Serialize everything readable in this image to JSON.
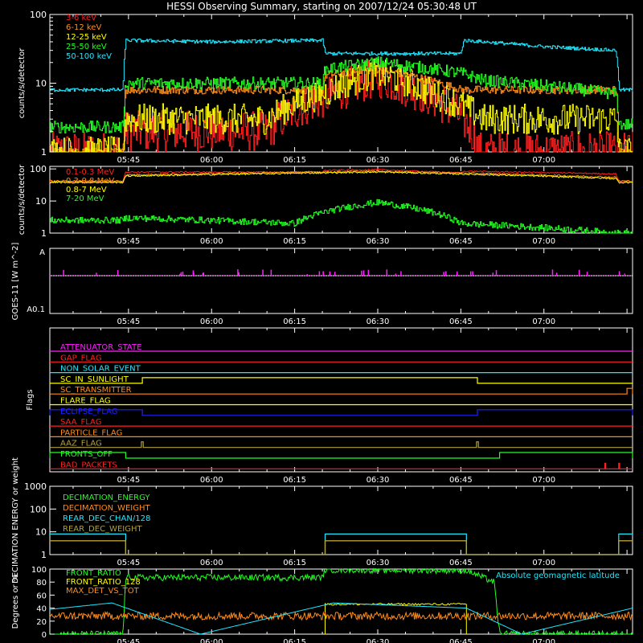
{
  "title": "HESSI Observing Summary, starting on 2007/12/24 05:30:48 UT",
  "time_ticks": [
    "05:45",
    "06:00",
    "06:15",
    "06:30",
    "06:45",
    "07:00"
  ],
  "colors": {
    "white": "#ffffff",
    "red": "#ff2020",
    "orange": "#ff8c1a",
    "yellow": "#ffff00",
    "green": "#20ff20",
    "cyan": "#20e8ff",
    "magenta": "#ff20ff",
    "blue": "#2020ff",
    "olive": "#b0a040"
  },
  "chart_data": [
    {
      "type": "line",
      "panel": "lc",
      "ylabel": "counts/s/detector",
      "yscale": "log",
      "ylim": [
        1,
        100
      ],
      "ytick_labels": [
        "1",
        "10",
        "100"
      ],
      "x_start": "05:30:48",
      "x_end": "07:16:00",
      "series": [
        {
          "name": "3-6 keV",
          "color": "#ff2020",
          "x": [
            "05:30:48",
            "05:44:00",
            "05:44:30",
            "06:10:00",
            "06:20:00",
            "06:30:00",
            "06:40:00",
            "06:47:00",
            "06:48:00",
            "07:16:00"
          ],
          "y": [
            1,
            1,
            2,
            2,
            6,
            12,
            6,
            2,
            1,
            1
          ]
        },
        {
          "name": "6-12 keV",
          "color": "#ff8c1a",
          "x": [
            "05:30:48",
            "05:44:00",
            "05:44:30",
            "06:20:00",
            "06:20:30",
            "06:30:00",
            "06:45:00",
            "06:49:00",
            "06:49:30",
            "07:13:00",
            "07:13:30",
            "07:16:00"
          ],
          "y": [
            1,
            1,
            8,
            8,
            13,
            16,
            8,
            8,
            8,
            8,
            1,
            1
          ]
        },
        {
          "name": "12-25 keV",
          "color": "#ffff00",
          "x": [
            "05:30:48",
            "05:44:00",
            "05:44:30",
            "06:10:00",
            "06:20:00",
            "06:30:00",
            "06:40:00",
            "06:49:00",
            "07:13:00",
            "07:13:30",
            "07:16:00"
          ],
          "y": [
            1,
            1,
            3,
            3,
            7,
            14,
            7,
            3,
            3,
            1,
            1
          ]
        },
        {
          "name": "25-50 keV",
          "color": "#20ff20",
          "x": [
            "05:30:48",
            "05:44:00",
            "05:44:30",
            "06:20:00",
            "06:20:30",
            "06:30:00",
            "06:45:00",
            "06:49:00",
            "07:13:00",
            "07:13:30",
            "07:16:00"
          ],
          "y": [
            2.3,
            2.3,
            10,
            10,
            16,
            20,
            14,
            11,
            7,
            2.5,
            2.5
          ]
        },
        {
          "name": "50-100 keV",
          "color": "#20e8ff",
          "x": [
            "05:30:48",
            "05:44:00",
            "05:44:30",
            "06:00:00",
            "06:20:00",
            "06:20:30",
            "06:45:00",
            "06:45:30",
            "07:00:00",
            "07:13:00",
            "07:13:30",
            "07:16:00"
          ],
          "y": [
            8,
            8,
            42,
            40,
            42,
            27,
            27,
            42,
            34,
            30,
            8,
            8
          ]
        }
      ]
    },
    {
      "type": "line",
      "panel": "hi",
      "ylabel": "counts/s/detector",
      "yscale": "log",
      "ylim": [
        1,
        120
      ],
      "ytick_labels": [
        "1",
        "10",
        "100"
      ],
      "series": [
        {
          "name": "0.1-0.3 MeV",
          "color": "#ff2020",
          "x": [
            "05:30:48",
            "05:44:00",
            "05:44:30",
            "06:20:00",
            "06:20:30",
            "06:30:00",
            "06:45:00",
            "06:45:30",
            "07:13:00",
            "07:13:30",
            "07:16:00"
          ],
          "y": [
            40,
            40,
            80,
            80,
            90,
            95,
            75,
            85,
            70,
            40,
            40
          ]
        },
        {
          "name": "0.3-0.8 MeV",
          "color": "#ff8c1a",
          "x": [
            "05:30:48",
            "05:44:00",
            "05:44:30",
            "06:30:00",
            "07:13:00",
            "07:13:30",
            "07:16:00"
          ],
          "y": [
            42,
            42,
            65,
            85,
            55,
            42,
            42
          ]
        },
        {
          "name": "0.8-7 MeV",
          "color": "#ffff00",
          "x": [
            "05:30:48",
            "05:44:00",
            "05:44:30",
            "06:30:00",
            "07:13:00",
            "07:13:30",
            "07:16:00"
          ],
          "y": [
            38,
            38,
            60,
            80,
            50,
            38,
            38
          ]
        },
        {
          "name": "7-20 MeV",
          "color": "#20ff20",
          "x": [
            "05:30:48",
            "05:44:00",
            "05:44:30",
            "06:15:00",
            "06:30:00",
            "06:45:00",
            "07:13:00",
            "07:16:00"
          ],
          "y": [
            2.5,
            2.5,
            3,
            2,
            9,
            2,
            1,
            1
          ]
        }
      ]
    },
    {
      "type": "line",
      "panel": "goes",
      "ylabel": "GOES-11 [W m^-2]",
      "ytick_labels": [
        "A",
        "A0.1"
      ],
      "series": [
        {
          "name": "",
          "color": "#ff20ff"
        }
      ]
    },
    {
      "type": "line",
      "panel": "flags",
      "ylabel": "Flags",
      "series": [
        {
          "name": "ATTENUATOR_STATE",
          "color": "#ff20ff",
          "steps": []
        },
        {
          "name": "GAP_FLAG",
          "color": "#ff2020",
          "steps": []
        },
        {
          "name": "NON_SOLAR_EVENT",
          "color": "#20e8ff",
          "steps": []
        },
        {
          "name": "SC_IN_SUNLIGHT",
          "color": "#ffff00",
          "steps": [
            [
              "05:30:48",
              "05:47:30",
              0
            ],
            [
              "05:47:30",
              "06:48:00",
              1
            ],
            [
              "06:48:00",
              "07:16:00",
              0
            ]
          ]
        },
        {
          "name": "SC_TRANSMITTER",
          "color": "#ff8c1a",
          "steps": [
            [
              "05:30:48",
              "07:15:00",
              0
            ],
            [
              "07:15:00",
              "07:16:00",
              1
            ]
          ]
        },
        {
          "name": "FLARE_FLAG",
          "color": "#ffff00",
          "steps": []
        },
        {
          "name": "ECLIPSE_FLAG",
          "color": "#2020ff",
          "steps": [
            [
              "05:30:48",
              "05:47:30",
              1
            ],
            [
              "05:47:30",
              "06:48:00",
              0
            ],
            [
              "06:48:00",
              "07:16:00",
              1
            ]
          ]
        },
        {
          "name": "SAA_FLAG",
          "color": "#ff2020",
          "steps": []
        },
        {
          "name": "PARTICLE_FLAG",
          "color": "#ff8c1a",
          "steps": []
        },
        {
          "name": "AAZ_FLAG",
          "color": "#b0a040",
          "steps": [
            [
              "05:47:20",
              "05:47:40",
              1
            ],
            [
              "06:47:50",
              "06:48:10",
              1
            ]
          ]
        },
        {
          "name": "FRONTS_OFF",
          "color": "#20ff20",
          "steps": [
            [
              "05:30:48",
              "05:44:30",
              1
            ],
            [
              "05:44:30",
              "06:52:00",
              0
            ],
            [
              "06:52:00",
              "07:16:00",
              1
            ]
          ]
        },
        {
          "name": "BAD_PACKETS",
          "color": "#ff2020",
          "steps": [
            [
              "07:11:00",
              "07:11:10",
              1
            ],
            [
              "07:13:30",
              "07:13:40",
              1
            ]
          ]
        }
      ]
    },
    {
      "type": "line",
      "panel": "dec",
      "ylabel": "DECIMATION ENERGY or weight",
      "yscale": "log",
      "ylim": [
        1,
        1000
      ],
      "ytick_labels": [
        "1",
        "10",
        "100",
        "1000"
      ],
      "series": [
        {
          "name": "DECIMATION_ENERGY",
          "color": "#20ff20",
          "steps": []
        },
        {
          "name": "DECIMATION_WEIGHT",
          "color": "#ff8c1a",
          "steps": [
            [
              "05:30:48",
              "05:44:30",
              4
            ],
            [
              "05:44:30",
              "06:20:30",
              1
            ],
            [
              "06:20:30",
              "06:46:00",
              4
            ],
            [
              "06:46:00",
              "07:13:30",
              1
            ],
            [
              "07:13:30",
              "07:16:00",
              4
            ]
          ]
        },
        {
          "name": "REAR_DEC_CHAN/128",
          "color": "#20e8ff",
          "steps": [
            [
              "05:30:48",
              "05:44:30",
              8
            ],
            [
              "05:44:30",
              "06:20:30",
              1
            ],
            [
              "06:20:30",
              "06:46:00",
              8
            ],
            [
              "06:46:00",
              "07:13:30",
              1
            ],
            [
              "07:13:30",
              "07:16:00",
              8
            ]
          ]
        },
        {
          "name": "REAR_DEC_WEIGHT",
          "color": "#b0a040",
          "steps": [
            [
              "05:30:48",
              "05:44:30",
              4
            ],
            [
              "05:44:30",
              "06:20:30",
              1
            ],
            [
              "06:20:30",
              "06:46:00",
              4
            ],
            [
              "06:46:00",
              "07:13:30",
              1
            ],
            [
              "07:13:30",
              "07:16:00",
              4
            ]
          ]
        }
      ]
    },
    {
      "type": "line",
      "panel": "ratio",
      "ylabel": "Degrees or %",
      "ylim": [
        0,
        100
      ],
      "ytick_labels": [
        "0",
        "20",
        "40",
        "60",
        "80",
        "100"
      ],
      "series": [
        {
          "name": "FRONT_RATIO",
          "color": "#20ff20",
          "x": [
            "05:30:48",
            "05:44:00",
            "05:44:30",
            "06:20:00",
            "06:20:30",
            "06:46:00",
            "06:51:00",
            "06:52:00",
            "07:16:00"
          ],
          "y": [
            0,
            0,
            87,
            87,
            99,
            98,
            80,
            0,
            0
          ]
        },
        {
          "name": "FRONT_RATIO_128",
          "color": "#ffff00",
          "x": [
            "06:20:00",
            "06:20:30",
            "06:46:00",
            "06:46:30"
          ],
          "y": [
            0,
            46,
            46,
            0
          ]
        },
        {
          "name": "MAX_DET_VS_TOT",
          "color": "#ff8c1a",
          "x": [
            "05:30:48",
            "07:16:00"
          ],
          "y": [
            28,
            28
          ]
        },
        {
          "name": "Absolute geomagnetic latitude",
          "color": "#20e8ff",
          "x": [
            "05:30:48",
            "05:42:00",
            "05:58:00",
            "06:22:00",
            "06:46:00",
            "06:56:00",
            "07:16:00"
          ],
          "y": [
            38,
            48,
            0,
            48,
            40,
            0,
            40
          ]
        }
      ]
    }
  ]
}
